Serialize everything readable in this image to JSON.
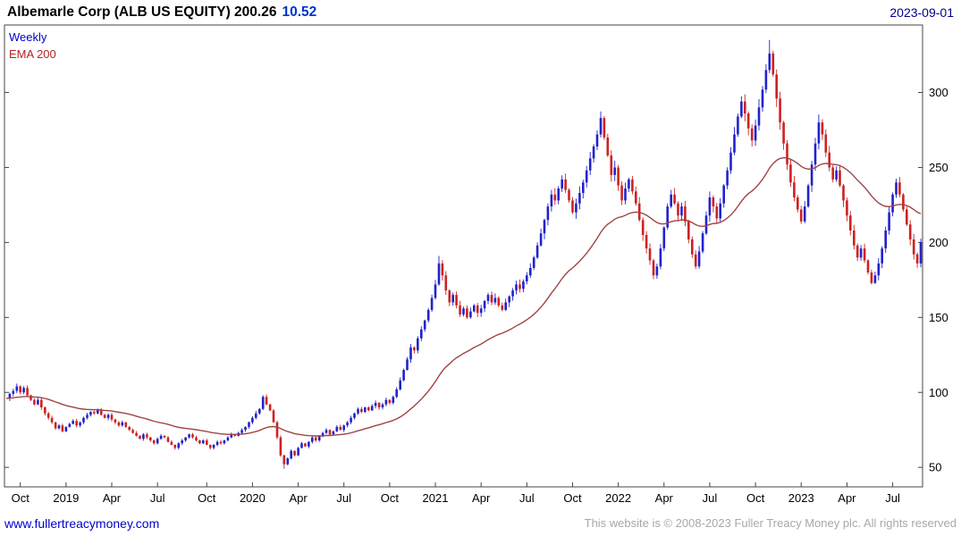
{
  "header": {
    "title": "Albemarle Corp (ALB US EQUITY) 200.26",
    "change": "10.52",
    "date": "2023-09-01"
  },
  "legend": {
    "timeframe": "Weekly",
    "overlay": "EMA 200"
  },
  "footer": {
    "site_link": "www.fullertreacymoney.com",
    "copyright": "This website is © 2008-2023 Fuller Treacy Money plc. All rights reserved"
  },
  "colors": {
    "up": "#2222cc",
    "down": "#cc2222",
    "ema": "#a04444",
    "axis": "#444444",
    "tick_text": "#000000"
  },
  "chart_data": {
    "type": "candlestick",
    "title": "Albemarle Corp (ALB US EQUITY)",
    "symbol": "ALB US EQUITY",
    "timeframe": "Weekly",
    "overlay": "EMA 200",
    "last_close": 200.26,
    "change": 10.52,
    "as_of_date": "2023-09-01",
    "ylabel": "",
    "xlabel": "",
    "grid": false,
    "y_ticks": [
      50,
      100,
      150,
      200,
      250,
      300
    ],
    "y_domain": [
      37,
      345
    ],
    "x_ticks": [
      {
        "label": "Oct",
        "week": 4
      },
      {
        "label": "2019",
        "week": 17
      },
      {
        "label": "Apr",
        "week": 30
      },
      {
        "label": "Jul",
        "week": 43
      },
      {
        "label": "Oct",
        "week": 57
      },
      {
        "label": "2020",
        "week": 70
      },
      {
        "label": "Apr",
        "week": 83
      },
      {
        "label": "Jul",
        "week": 96
      },
      {
        "label": "Oct",
        "week": 109
      },
      {
        "label": "2021",
        "week": 122
      },
      {
        "label": "Apr",
        "week": 135
      },
      {
        "label": "Jul",
        "week": 148
      },
      {
        "label": "Oct",
        "week": 161
      },
      {
        "label": "2022",
        "week": 174
      },
      {
        "label": "Apr",
        "week": 187
      },
      {
        "label": "Jul",
        "week": 200
      },
      {
        "label": "Oct",
        "week": 213
      },
      {
        "label": "2023",
        "week": 226
      },
      {
        "label": "Apr",
        "week": 239
      },
      {
        "label": "Jul",
        "week": 252
      }
    ],
    "weekly_closes": [
      96,
      99,
      101,
      104,
      100,
      103,
      98,
      95,
      92,
      95,
      90,
      86,
      83,
      80,
      76,
      78,
      74,
      77,
      79,
      81,
      78,
      80,
      83,
      85,
      87,
      86,
      88,
      85,
      83,
      85,
      82,
      80,
      78,
      80,
      77,
      75,
      73,
      71,
      69,
      72,
      70,
      68,
      66,
      69,
      71,
      70,
      67,
      65,
      63,
      66,
      68,
      70,
      72,
      70,
      68,
      66,
      68,
      65,
      63,
      65,
      67,
      66,
      68,
      70,
      72,
      71,
      73,
      75,
      77,
      80,
      83,
      86,
      89,
      97,
      92,
      88,
      80,
      70,
      58,
      52,
      56,
      61,
      58,
      63,
      66,
      64,
      67,
      70,
      68,
      71,
      73,
      75,
      72,
      74,
      77,
      75,
      78,
      80,
      83,
      86,
      89,
      87,
      90,
      88,
      91,
      93,
      90,
      92,
      95,
      93,
      97,
      102,
      108,
      115,
      122,
      130,
      128,
      136,
      142,
      148,
      155,
      163,
      172,
      186,
      178,
      168,
      160,
      165,
      158,
      152,
      156,
      150,
      154,
      158,
      153,
      156,
      161,
      165,
      160,
      163,
      158,
      155,
      160,
      164,
      168,
      172,
      169,
      174,
      178,
      183,
      190,
      198,
      206,
      215,
      224,
      232,
      228,
      236,
      242,
      235,
      228,
      220,
      226,
      233,
      240,
      248,
      256,
      264,
      272,
      283,
      270,
      258,
      245,
      250,
      238,
      228,
      236,
      242,
      234,
      226,
      215,
      205,
      196,
      188,
      178,
      184,
      196,
      210,
      224,
      232,
      226,
      218,
      224,
      214,
      202,
      192,
      184,
      194,
      206,
      218,
      230,
      224,
      216,
      226,
      238,
      248,
      260,
      272,
      284,
      294,
      286,
      276,
      268,
      278,
      290,
      302,
      315,
      326,
      312,
      296,
      280,
      266,
      252,
      240,
      230,
      222,
      214,
      224,
      238,
      252,
      266,
      280,
      272,
      260,
      250,
      242,
      248,
      238,
      228,
      218,
      208,
      198,
      190,
      196,
      188,
      180,
      173,
      178,
      186,
      196,
      208,
      220,
      232,
      240,
      232,
      222,
      212,
      202,
      192,
      186,
      200.26
    ],
    "wick_overrides": {
      "79": {
        "low": 49
      },
      "123": {
        "high": 191
      },
      "217": {
        "high": 335
      }
    },
    "ema_render_period": 40,
    "legend_position": "top-left"
  }
}
